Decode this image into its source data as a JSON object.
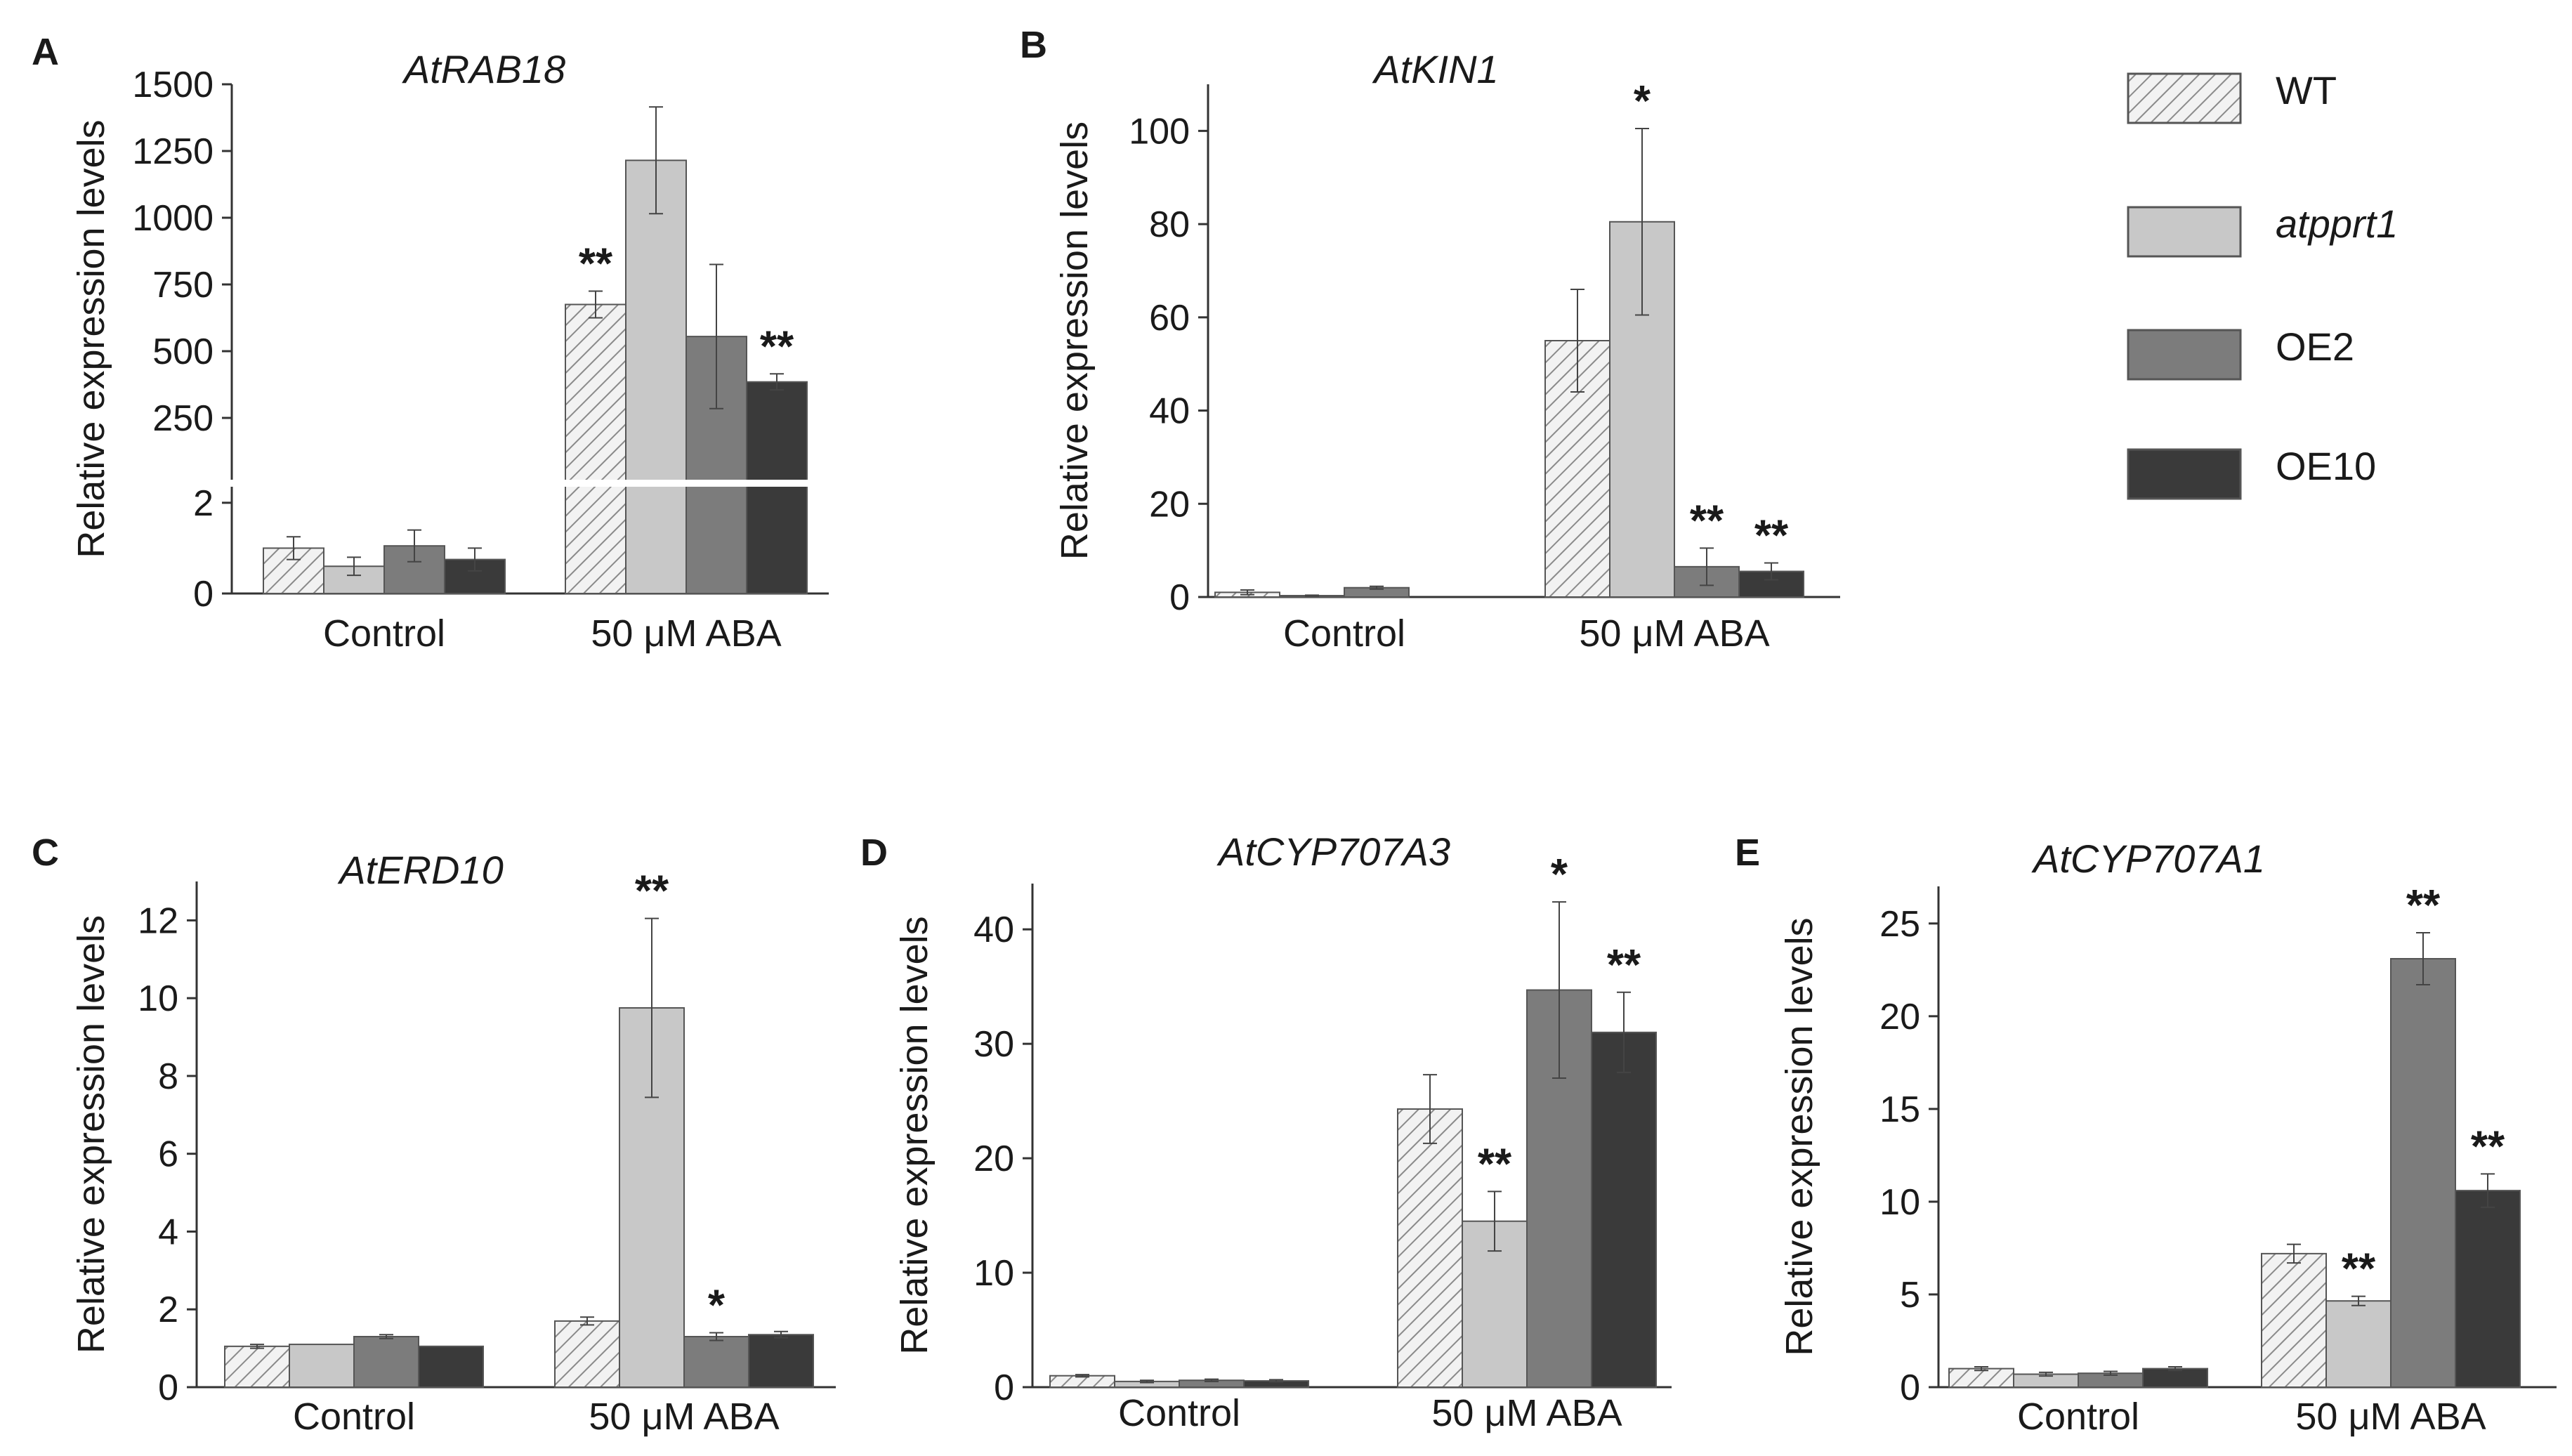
{
  "legend": {
    "items": [
      {
        "label": "WT",
        "italic": false,
        "key": "wt"
      },
      {
        "label": "atpprt1",
        "italic": true,
        "key": "mut"
      },
      {
        "label": "OE2",
        "italic": false,
        "key": "oe2"
      },
      {
        "label": "OE10",
        "italic": false,
        "key": "oe10"
      }
    ]
  },
  "colors": {
    "wt": "#f2f2f2",
    "mut": "#c8c8c8",
    "oe2": "#7c7c7c",
    "oe10": "#3a3a3a",
    "axis": "#333333",
    "hatch": "#8a8a8a"
  },
  "chart_data": [
    {
      "panel": "A",
      "type": "bar",
      "title": "AtRAB18",
      "ylabel": "Relative expression levels",
      "categories": [
        "Control",
        "50 μM ABA"
      ],
      "axis_break": {
        "lower": [
          0,
          2.4
        ],
        "upper": [
          0,
          1500
        ],
        "note": "broken y-axis"
      },
      "lower_ticks": [
        0,
        2
      ],
      "upper_ticks": [
        250,
        500,
        750,
        1000,
        1250,
        1500
      ],
      "series": [
        {
          "name": "WT",
          "values": [
            1.0,
            675
          ],
          "errors": [
            0.25,
            50
          ]
        },
        {
          "name": "atpprt1",
          "values": [
            0.6,
            1215
          ],
          "errors": [
            0.2,
            200
          ]
        },
        {
          "name": "OE2",
          "values": [
            1.05,
            555
          ],
          "errors": [
            0.35,
            270
          ]
        },
        {
          "name": "OE10",
          "values": [
            0.75,
            385
          ],
          "errors": [
            0.25,
            30
          ]
        }
      ],
      "annotations": [
        [
          "",
          "**"
        ],
        [
          "",
          ""
        ],
        [
          "",
          ""
        ],
        [
          "",
          "**"
        ]
      ]
    },
    {
      "panel": "B",
      "type": "bar",
      "title": "AtKIN1",
      "ylabel": "Relative expression levels",
      "categories": [
        "Control",
        "50 μM ABA"
      ],
      "ylim": [
        0,
        110
      ],
      "yticks": [
        0,
        20,
        40,
        60,
        80,
        100
      ],
      "series": [
        {
          "name": "WT",
          "values": [
            1.0,
            55
          ],
          "errors": [
            0.5,
            11
          ]
        },
        {
          "name": "atpprt1",
          "values": [
            0.3,
            80.5
          ],
          "errors": [
            0.1,
            20
          ]
        },
        {
          "name": "OE2",
          "values": [
            2.0,
            6.5
          ],
          "errors": [
            0.3,
            4
          ]
        },
        {
          "name": "OE10",
          "values": [
            0,
            5.5
          ],
          "errors": [
            0,
            1.8
          ]
        }
      ],
      "annotations": [
        [
          "",
          ""
        ],
        [
          "",
          "*"
        ],
        [
          "",
          "**"
        ],
        [
          "",
          "**"
        ]
      ]
    },
    {
      "panel": "C",
      "type": "bar",
      "title": "AtERD10",
      "ylabel": "Relative expression levels",
      "categories": [
        "Control",
        "50 μM ABA"
      ],
      "ylim": [
        0,
        13
      ],
      "yticks": [
        0,
        2,
        4,
        6,
        8,
        10,
        12
      ],
      "series": [
        {
          "name": "WT",
          "values": [
            1.05,
            1.7
          ],
          "errors": [
            0.05,
            0.1
          ]
        },
        {
          "name": "atpprt1",
          "values": [
            1.1,
            9.75
          ],
          "errors": [
            0,
            2.3
          ]
        },
        {
          "name": "OE2",
          "values": [
            1.3,
            1.3
          ],
          "errors": [
            0.05,
            0.1
          ]
        },
        {
          "name": "OE10",
          "values": [
            1.05,
            1.35
          ],
          "errors": [
            0,
            0.08
          ]
        }
      ],
      "annotations": [
        [
          "",
          ""
        ],
        [
          "",
          "**"
        ],
        [
          "",
          "*"
        ],
        [
          "",
          ""
        ]
      ]
    },
    {
      "panel": "D",
      "type": "bar",
      "title": "AtCYP707A3",
      "ylabel": "Relative expression levels",
      "categories": [
        "Control",
        "50 μM ABA"
      ],
      "ylim": [
        0,
        44
      ],
      "yticks": [
        0,
        10,
        20,
        30,
        40
      ],
      "series": [
        {
          "name": "WT",
          "values": [
            1.0,
            24.3
          ],
          "errors": [
            0.1,
            3
          ]
        },
        {
          "name": "atpprt1",
          "values": [
            0.5,
            14.5
          ],
          "errors": [
            0.1,
            2.6
          ]
        },
        {
          "name": "OE2",
          "values": [
            0.6,
            34.7
          ],
          "errors": [
            0.1,
            7.7
          ]
        },
        {
          "name": "OE10",
          "values": [
            0.55,
            31.0
          ],
          "errors": [
            0.1,
            3.5
          ]
        }
      ],
      "annotations": [
        [
          "",
          ""
        ],
        [
          "",
          "**"
        ],
        [
          "",
          "*"
        ],
        [
          "",
          "**"
        ]
      ]
    },
    {
      "panel": "E",
      "type": "bar",
      "title": "AtCYP707A1",
      "ylabel": "Relative expression levels",
      "categories": [
        "Control",
        "50 μM ABA"
      ],
      "ylim": [
        0,
        27
      ],
      "yticks": [
        0,
        5,
        10,
        15,
        20,
        25
      ],
      "series": [
        {
          "name": "WT",
          "values": [
            1.0,
            7.2
          ],
          "errors": [
            0.1,
            0.5
          ]
        },
        {
          "name": "atpprt1",
          "values": [
            0.7,
            4.65
          ],
          "errors": [
            0.1,
            0.25
          ]
        },
        {
          "name": "OE2",
          "values": [
            0.75,
            23.1
          ],
          "errors": [
            0.1,
            1.4
          ]
        },
        {
          "name": "OE10",
          "values": [
            1.0,
            10.6
          ],
          "errors": [
            0.1,
            0.9
          ]
        }
      ],
      "annotations": [
        [
          "",
          ""
        ],
        [
          "",
          "**"
        ],
        [
          "",
          "**"
        ],
        [
          "",
          "**"
        ]
      ]
    }
  ]
}
